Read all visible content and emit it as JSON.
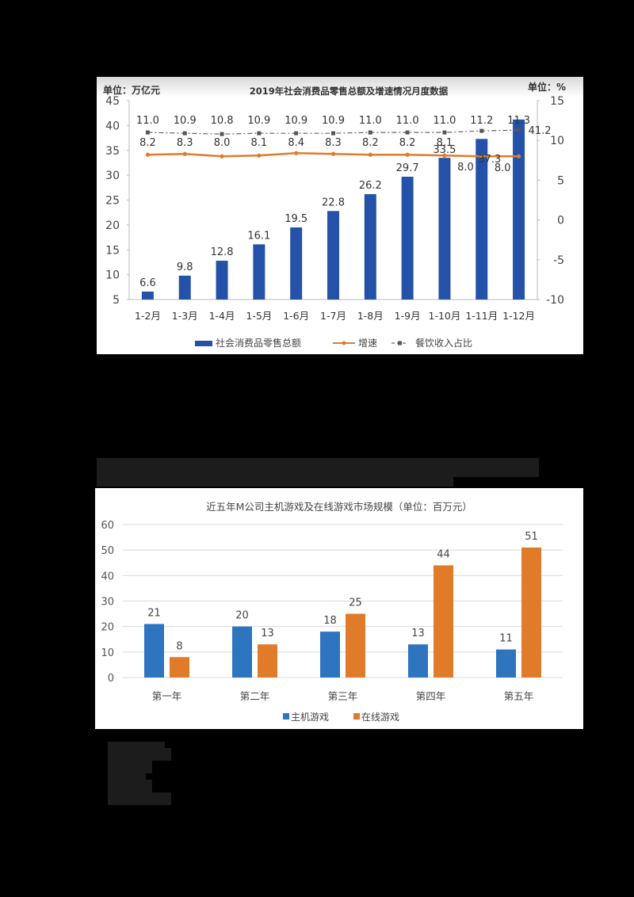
{
  "chart_data": [
    {
      "type": "bar+line",
      "title": "2019年社会消费品零售总额及增速情况月度数据",
      "left_unit_label": "单位：万亿元",
      "right_unit_label": "单位：%",
      "categories": [
        "1-2月",
        "1-3月",
        "1-4月",
        "1-5月",
        "1-6月",
        "1-7月",
        "1-8月",
        "1-9月",
        "1-10月",
        "1-11月",
        "1-12月"
      ],
      "series": [
        {
          "name": "社会消费品零售总额",
          "type": "bar",
          "axis": "left",
          "color": "#2352a8",
          "values": [
            6.6,
            9.8,
            12.8,
            16.1,
            19.5,
            22.8,
            26.2,
            29.7,
            33.5,
            37.3,
            41.2
          ]
        },
        {
          "name": "增速",
          "type": "line",
          "axis": "right",
          "color": "#e07b2a",
          "values": [
            8.2,
            8.3,
            8.0,
            8.1,
            8.4,
            8.3,
            8.2,
            8.2,
            8.1,
            8.0,
            8.0
          ]
        },
        {
          "name": "餐饮收入占比",
          "type": "line-dashed",
          "axis": "right",
          "color": "#555555",
          "values": [
            11.0,
            10.9,
            10.8,
            10.9,
            10.9,
            10.9,
            11.0,
            11.0,
            11.0,
            11.2,
            11.3
          ]
        }
      ],
      "y_left": {
        "min": 5,
        "max": 45,
        "ticks": [
          5,
          10,
          15,
          20,
          25,
          30,
          35,
          40,
          45
        ]
      },
      "y_right": {
        "min": -10,
        "max": 15,
        "ticks": [
          -10,
          -5,
          0,
          5,
          10,
          15
        ]
      },
      "legend_position": "bottom",
      "grid": false
    },
    {
      "type": "bar",
      "title": "近五年M公司主机游戏及在线游戏市场规模（单位：百万元）",
      "categories": [
        "第一年",
        "第二年",
        "第三年",
        "第四年",
        "第五年"
      ],
      "series": [
        {
          "name": "主机游戏",
          "color": "#2e75c0",
          "values": [
            21,
            20,
            18,
            13,
            11
          ]
        },
        {
          "name": "在线游戏",
          "color": "#e07b2a",
          "values": [
            8,
            13,
            25,
            44,
            51
          ]
        }
      ],
      "y": {
        "min": 0,
        "max": 60,
        "ticks": [
          0,
          10,
          20,
          30,
          40,
          50,
          60
        ]
      },
      "legend_position": "bottom",
      "grid": true
    }
  ]
}
